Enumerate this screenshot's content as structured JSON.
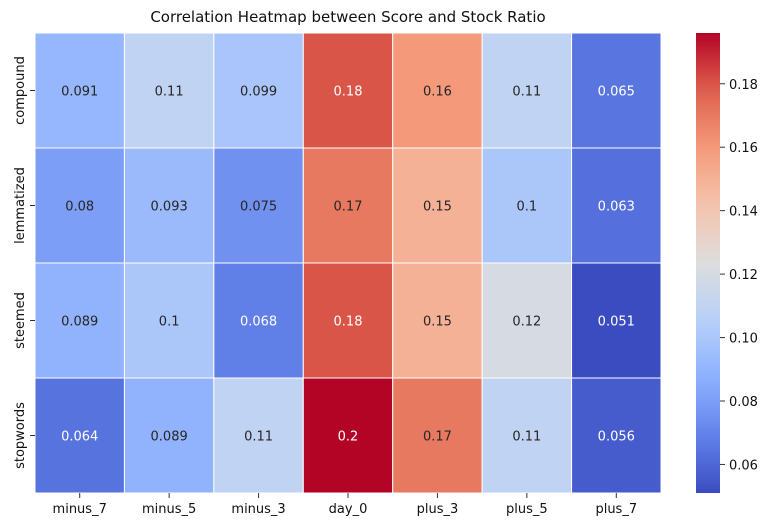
{
  "chart_data": {
    "type": "heatmap",
    "title": "Correlation Heatmap between Score and Stock Ratio",
    "xlabel": "",
    "ylabel": "",
    "x_categories": [
      "minus_7",
      "minus_5",
      "minus_3",
      "day_0",
      "plus_3",
      "plus_5",
      "plus_7"
    ],
    "y_categories": [
      "compound",
      "lemmatized",
      "steemed",
      "stopwords"
    ],
    "values": [
      [
        0.091,
        0.11,
        0.099,
        0.18,
        0.16,
        0.11,
        0.065
      ],
      [
        0.08,
        0.093,
        0.075,
        0.17,
        0.15,
        0.1,
        0.063
      ],
      [
        0.089,
        0.1,
        0.068,
        0.18,
        0.15,
        0.12,
        0.051
      ],
      [
        0.064,
        0.089,
        0.11,
        0.2,
        0.17,
        0.11,
        0.056
      ]
    ],
    "annotations": [
      [
        "0.091",
        "0.11",
        "0.099",
        "0.18",
        "0.16",
        "0.11",
        "0.065"
      ],
      [
        "0.08",
        "0.093",
        "0.075",
        "0.17",
        "0.15",
        "0.1",
        "0.063"
      ],
      [
        "0.089",
        "0.1",
        "0.068",
        "0.18",
        "0.15",
        "0.12",
        "0.051"
      ],
      [
        "0.064",
        "0.089",
        "0.11",
        "0.2",
        "0.17",
        "0.11",
        "0.056"
      ]
    ],
    "colormap": "coolwarm",
    "vmin": 0.051,
    "vmax": 0.196,
    "colorbar_ticks": [
      0.06,
      0.08,
      0.1,
      0.12,
      0.14,
      0.16,
      0.18
    ],
    "colorbar_tick_labels": [
      "0.06",
      "0.08",
      "0.10",
      "0.12",
      "0.14",
      "0.16",
      "0.18"
    ],
    "colorbar_position": "right",
    "grid": false
  }
}
